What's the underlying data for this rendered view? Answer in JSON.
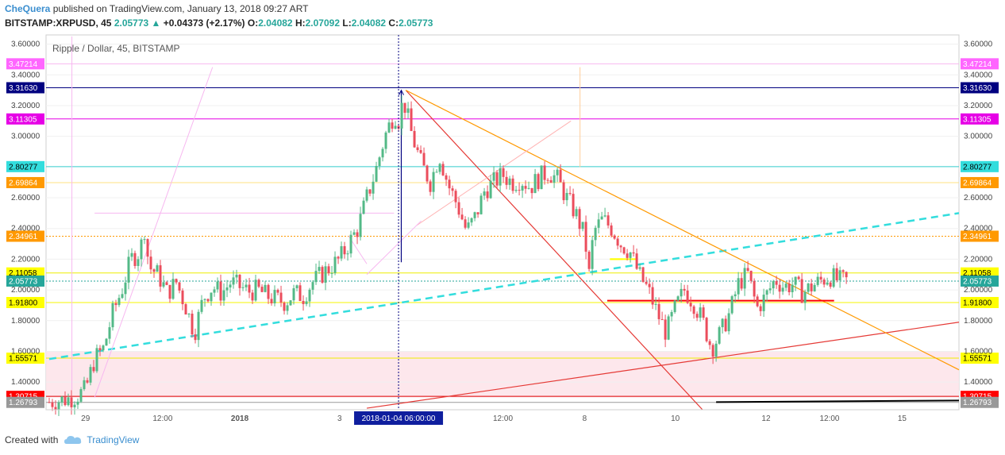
{
  "header": {
    "author": "CheQuera",
    "published_text": " published on TradingView.com, January 13, 2018 09:27 ART",
    "symbol": "BITSTAMP:XRPUSD, 45",
    "last": "2.05773",
    "change": "+0.04373 (+2.17%)",
    "o_label": "O:",
    "o": "2.04082",
    "h_label": "H:",
    "h": "2.07092",
    "l_label": "L:",
    "l": "2.04082",
    "c_label": "C:",
    "c": "2.05773"
  },
  "legend": {
    "title": "Ripple / Dollar, 45, BITSTAMP"
  },
  "footer": {
    "created_with": "Created with",
    "brand": "TradingView"
  },
  "crosshair_date": "2018-01-04 06:00:00",
  "chart_data": {
    "type": "candlestick",
    "ylim": [
      1.22,
      3.66
    ],
    "xlim": [
      0,
      100
    ],
    "y_ticks": [
      "1.40000",
      "1.60000",
      "1.80000",
      "2.00000",
      "2.20000",
      "2.40000",
      "2.60000",
      "3.00000",
      "3.20000",
      "3.40000",
      "3.60000"
    ],
    "x_ticks": [
      {
        "t": 4,
        "label": "29",
        "bold": false
      },
      {
        "t": 12.5,
        "label": "12:00",
        "bold": false
      },
      {
        "t": 21,
        "label": "2018",
        "bold": true
      },
      {
        "t": 32,
        "label": "3",
        "bold": false
      },
      {
        "t": 50,
        "label": "12:00",
        "bold": false
      },
      {
        "t": 59,
        "label": "8",
        "bold": false
      },
      {
        "t": 69,
        "label": "10",
        "bold": false
      },
      {
        "t": 79,
        "label": "12",
        "bold": false
      },
      {
        "t": 86,
        "label": "12:00",
        "bold": false
      },
      {
        "t": 94,
        "label": "15",
        "bold": false
      }
    ],
    "crosshair_t": 38.5,
    "price_levels": [
      {
        "label": "3.47214",
        "value": 3.47214,
        "color": "#f7b7f0",
        "bg": "#ff66ff",
        "style": "solid"
      },
      {
        "label": "3.31630",
        "value": 3.3163,
        "color": "#000080",
        "bg": "#000080",
        "style": "solid"
      },
      {
        "label": "3.11305",
        "value": 3.11305,
        "color": "#e600e6",
        "bg": "#e600e6",
        "style": "solid"
      },
      {
        "label": "2.80277",
        "value": 2.80277,
        "color": "#33cccc",
        "bg": "#33dddd",
        "style": "solid"
      },
      {
        "label": "2.69864",
        "value": 2.69864,
        "color": "#ffe080",
        "bg": "#ff9900",
        "style": "solid"
      },
      {
        "label": "2.34961",
        "value": 2.34961,
        "color": "#ff9900",
        "bg": "#ff9900",
        "style": "dotted"
      },
      {
        "label": "2.11058",
        "value": 2.11058,
        "color": "#eeee00",
        "bg": "#ffff00",
        "style": "solid"
      },
      {
        "label": "2.05773",
        "value": 2.05773,
        "color": "#26a69a",
        "bg": "#26a69a",
        "style": "dotted"
      },
      {
        "label": "1.91800",
        "value": 1.918,
        "color": "#f5f500",
        "bg": "#ffff00",
        "style": "solid"
      },
      {
        "label": "1.55571",
        "value": 1.55571,
        "color": "#eeee00",
        "bg": "#ffff00",
        "style": "solid"
      },
      {
        "label": "1.30715",
        "value": 1.30715,
        "color": "#e00000",
        "bg": "#ff0000",
        "style": "solid"
      },
      {
        "label": "1.26793",
        "value": 1.26793,
        "color": "#999999",
        "bg": "#999999",
        "style": "solid"
      }
    ],
    "pink_zone": [
      1.3,
      1.6
    ],
    "close_path": [
      [
        0,
        1.27
      ],
      [
        2,
        1.29
      ],
      [
        3,
        1.31
      ],
      [
        4,
        1.35
      ],
      [
        5,
        1.55
      ],
      [
        6,
        1.62
      ],
      [
        7,
        1.85
      ],
      [
        8,
        2.0
      ],
      [
        9,
        2.2
      ],
      [
        10,
        2.25
      ],
      [
        10.5,
        2.4
      ],
      [
        11,
        2.15
      ],
      [
        12,
        2.1
      ],
      [
        13,
        1.98
      ],
      [
        14,
        2.05
      ],
      [
        15,
        1.9
      ],
      [
        16,
        1.72
      ],
      [
        17,
        1.95
      ],
      [
        18,
        2.02
      ],
      [
        19,
        1.98
      ],
      [
        20,
        2.05
      ],
      [
        21,
        2.02
      ],
      [
        22,
        1.99
      ],
      [
        23,
        2.0
      ],
      [
        24,
        1.96
      ],
      [
        25,
        1.94
      ],
      [
        26,
        1.92
      ],
      [
        27,
        1.98
      ],
      [
        28,
        1.96
      ],
      [
        29,
        2.05
      ],
      [
        30,
        2.1
      ],
      [
        31,
        2.15
      ],
      [
        32,
        2.2
      ],
      [
        33,
        2.3
      ],
      [
        34,
        2.4
      ],
      [
        35,
        2.6
      ],
      [
        36,
        2.78
      ],
      [
        37,
        3.0
      ],
      [
        38,
        3.15
      ],
      [
        38.6,
        3.1
      ],
      [
        39,
        3.25
      ],
      [
        40,
        3.0
      ],
      [
        41,
        2.82
      ],
      [
        42,
        2.7
      ],
      [
        43,
        2.88
      ],
      [
        44,
        2.68
      ],
      [
        45,
        2.55
      ],
      [
        46,
        2.38
      ],
      [
        47,
        2.48
      ],
      [
        48,
        2.65
      ],
      [
        49,
        2.7
      ],
      [
        50,
        2.75
      ],
      [
        51,
        2.7
      ],
      [
        52,
        2.72
      ],
      [
        53,
        2.67
      ],
      [
        54,
        2.73
      ],
      [
        55,
        2.77
      ],
      [
        56,
        2.72
      ],
      [
        57,
        2.6
      ],
      [
        58,
        2.5
      ],
      [
        59,
        2.35
      ],
      [
        59.5,
        2.1
      ],
      [
        60,
        2.38
      ],
      [
        61,
        2.46
      ],
      [
        62,
        2.4
      ],
      [
        63,
        2.3
      ],
      [
        64,
        2.25
      ],
      [
        65,
        2.1
      ],
      [
        66,
        2.0
      ],
      [
        67,
        1.85
      ],
      [
        68,
        1.72
      ],
      [
        69,
        1.88
      ],
      [
        70,
        2.0
      ],
      [
        71,
        1.92
      ],
      [
        72,
        1.8
      ],
      [
        73,
        1.62
      ],
      [
        74,
        1.72
      ],
      [
        75,
        1.85
      ],
      [
        76,
        2.05
      ],
      [
        77,
        2.1
      ],
      [
        78,
        1.88
      ],
      [
        79,
        1.96
      ],
      [
        80,
        2.07
      ],
      [
        81,
        2.02
      ],
      [
        82,
        2.04
      ],
      [
        83,
        1.98
      ],
      [
        84,
        2.02
      ],
      [
        85,
        2.06
      ],
      [
        86,
        2.09
      ],
      [
        87,
        2.06
      ],
      [
        88,
        2.058
      ]
    ],
    "current_price": 2.05773
  }
}
